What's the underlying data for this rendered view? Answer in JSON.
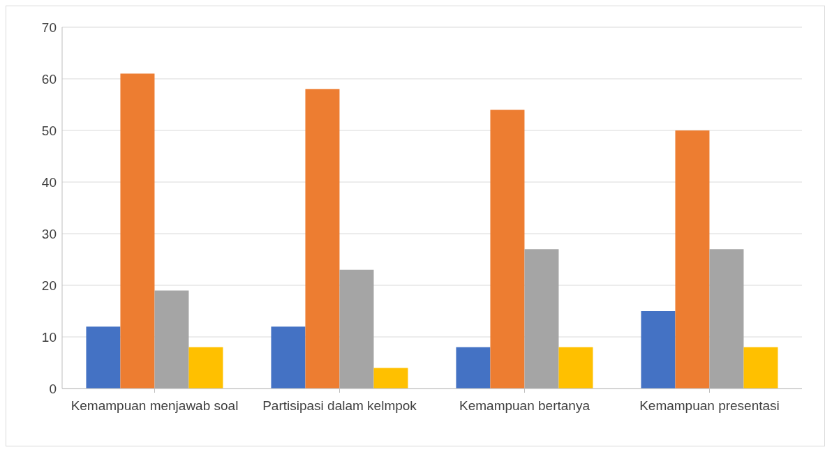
{
  "chart_data": {
    "type": "bar",
    "categories": [
      "Kemampuan menjawab soal",
      "Partisipasi dalam kelmpok",
      "Kemampuan bertanya",
      "Kemampuan presentasi"
    ],
    "series": [
      {
        "color": "#4472c4",
        "values": [
          12,
          12,
          8,
          15
        ]
      },
      {
        "color": "#ed7d31",
        "values": [
          61,
          58,
          54,
          50
        ]
      },
      {
        "color": "#a5a5a5",
        "values": [
          19,
          23,
          27,
          27
        ]
      },
      {
        "color": "#ffc000",
        "values": [
          8,
          4,
          8,
          8
        ]
      }
    ],
    "ylim": [
      0,
      70
    ],
    "yticks": [
      0,
      10,
      20,
      30,
      40,
      50,
      60,
      70
    ],
    "grid": "y",
    "legend": false
  }
}
